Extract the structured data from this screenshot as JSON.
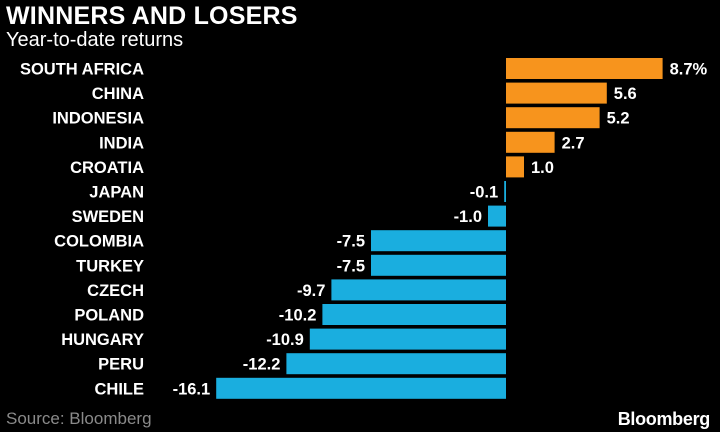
{
  "header": {
    "title": "WINNERS AND LOSERS",
    "subtitle": "Year-to-date returns"
  },
  "footer": {
    "source": "Source: Bloomberg",
    "brand": "Bloomberg"
  },
  "colors": {
    "positive": "#f7941d",
    "negative": "#1aaedf",
    "background": "#000000"
  },
  "chart_data": {
    "type": "bar",
    "orientation": "horizontal",
    "title": "WINNERS AND LOSERS",
    "subtitle": "Year-to-date returns",
    "unit_suffix_on_first": "%",
    "categories": [
      "SOUTH AFRICA",
      "CHINA",
      "INDONESIA",
      "INDIA",
      "CROATIA",
      "JAPAN",
      "SWEDEN",
      "COLOMBIA",
      "TURKEY",
      "CZECH",
      "POLAND",
      "HUNGARY",
      "PERU",
      "CHILE"
    ],
    "values": [
      8.7,
      5.6,
      5.2,
      2.7,
      1.0,
      -0.1,
      -1.0,
      -7.5,
      -7.5,
      -9.7,
      -10.2,
      -10.9,
      -12.2,
      -16.1
    ],
    "value_labels": [
      "8.7%",
      "5.6",
      "5.2",
      "2.7",
      "1.0",
      "-0.1",
      "-1.0",
      "-7.5",
      "-7.5",
      "-9.7",
      "-10.2",
      "-10.9",
      "-12.2",
      "-16.1"
    ],
    "xlim": [
      -16.1,
      8.7
    ],
    "grid": false,
    "legend": "none"
  }
}
